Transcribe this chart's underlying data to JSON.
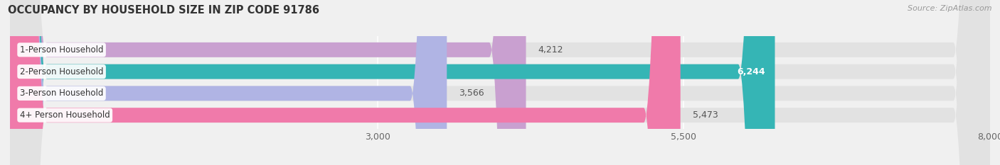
{
  "title": "OCCUPANCY BY HOUSEHOLD SIZE IN ZIP CODE 91786",
  "source": "Source: ZipAtlas.com",
  "categories": [
    "1-Person Household",
    "2-Person Household",
    "3-Person Household",
    "4+ Person Household"
  ],
  "values": [
    4212,
    6244,
    3566,
    5473
  ],
  "bar_colors": [
    "#c9a0d0",
    "#35b5b5",
    "#b0b4e4",
    "#f07aaa"
  ],
  "label_colors": [
    "#555555",
    "#ffffff",
    "#555555",
    "#555555"
  ],
  "xlim": [
    0,
    8000
  ],
  "xticks": [
    3000,
    5500,
    8000
  ],
  "background_color": "#f0f0f0",
  "bar_background_color": "#e2e2e2",
  "title_fontsize": 10.5,
  "source_fontsize": 8,
  "tick_fontsize": 9,
  "bar_label_fontsize": 9,
  "ylabel_fontsize": 8.5,
  "bar_height": 0.68,
  "rounding_size": 300
}
